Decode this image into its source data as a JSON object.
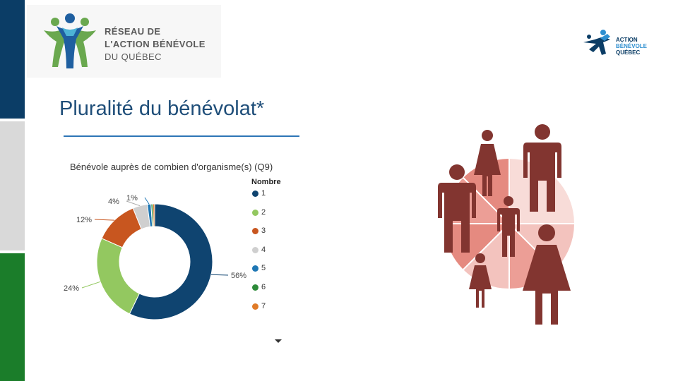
{
  "sidebar": {
    "colors": [
      "#0b3d66",
      "#d9d9d9",
      "#1b7d2a"
    ]
  },
  "logo_rabq": {
    "line1": "RÉSEAU DE",
    "line2": "L'ACTION BÉNÉVOLE",
    "line3": "DU QUÉBEC"
  },
  "logo_abq": {
    "line1": "ACTION",
    "line2": "BÉNÉVOLE",
    "line3": "QUÉBEC"
  },
  "slide": {
    "title": "Pluralité du bénévolat*"
  },
  "chart_data": {
    "type": "pie",
    "title": "Bénévole auprès de combien d'organisme(s) (Q9)",
    "legend_title": "Nombre",
    "legend_position": "right",
    "categories": [
      "1",
      "2",
      "3",
      "4",
      "5",
      "6",
      "7"
    ],
    "values": [
      56,
      24,
      12,
      4,
      1,
      0.5,
      0.5
    ],
    "labels": [
      "56%",
      "24%",
      "12%",
      "4%",
      "1%",
      "",
      ""
    ],
    "colors": [
      "#0f4470",
      "#93c860",
      "#c8561f",
      "#cfcfcf",
      "#1f77b4",
      "#2d8b3a",
      "#e07b28"
    ]
  },
  "illustration": {
    "colors": {
      "people": "#823530",
      "pie_dark": "#e58a80",
      "pie_mid": "#ec9e96",
      "pie_light": "#f3c3be",
      "pie_lighter": "#f8dcd8"
    }
  }
}
